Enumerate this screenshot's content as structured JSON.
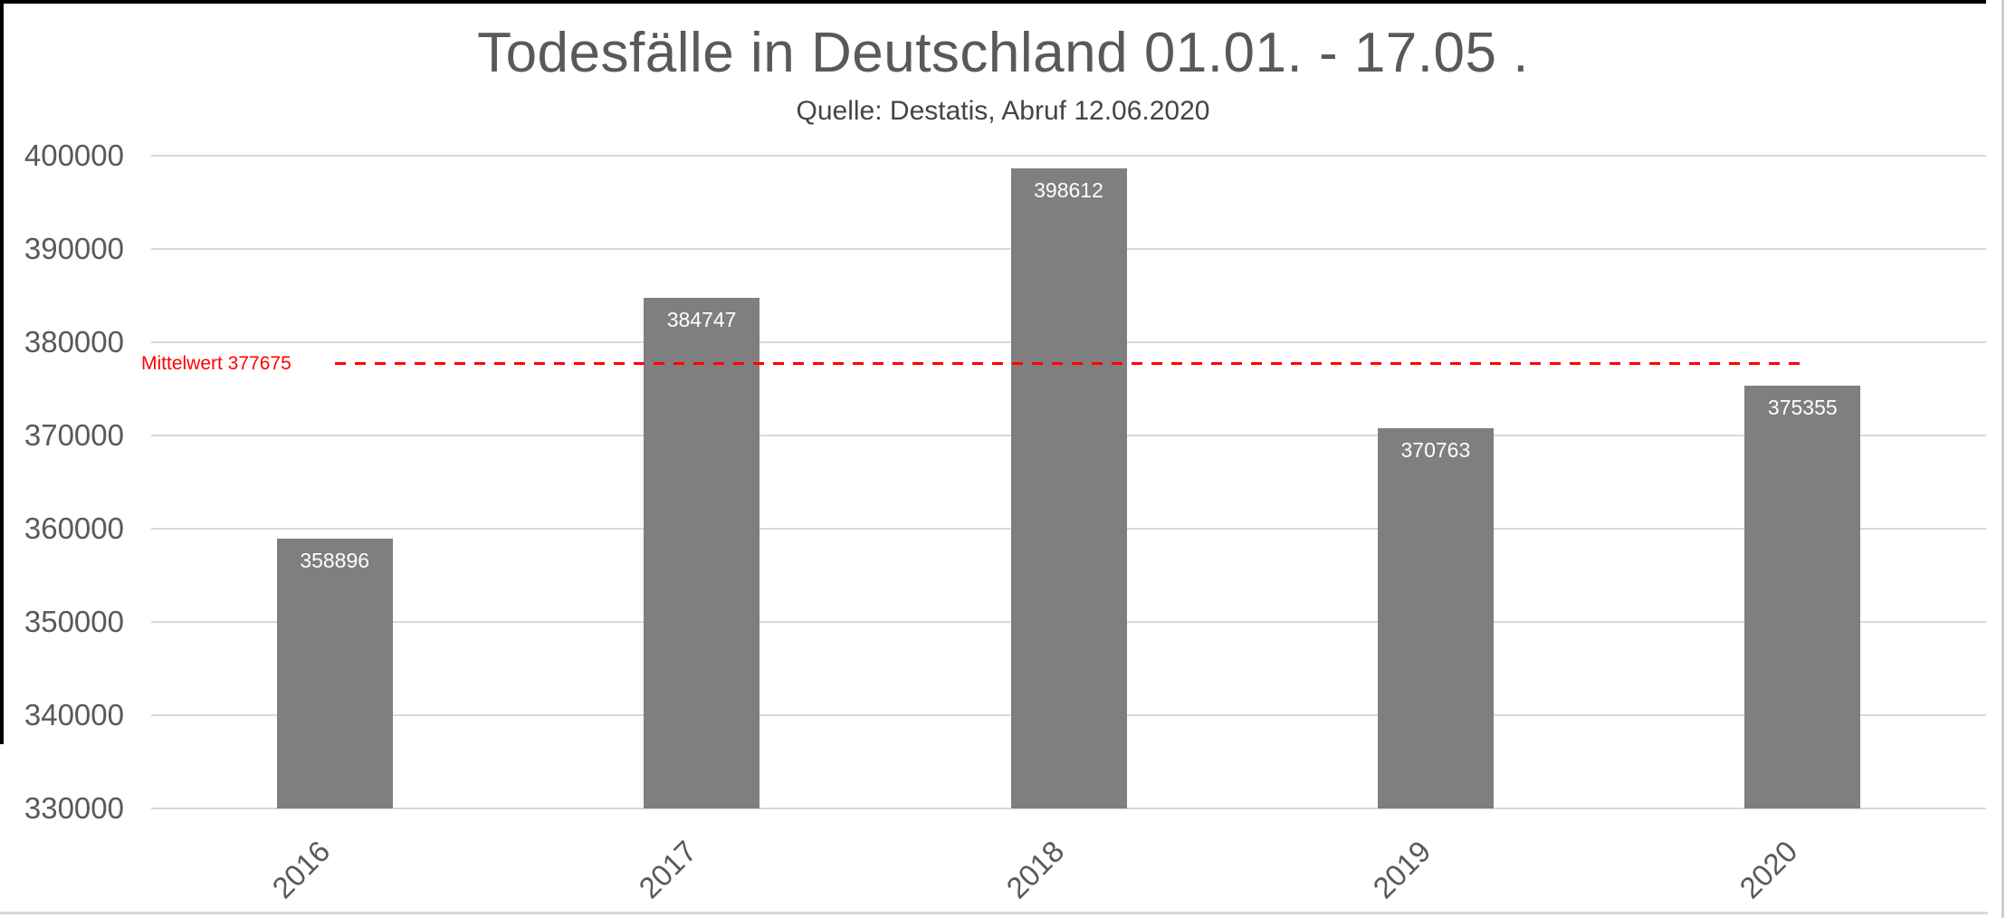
{
  "chart_data": {
    "type": "bar",
    "title": "Todesfälle in Deutschland 01.01. - 17.05 .",
    "subtitle": "Quelle: Destatis, Abruf 12.06.2020",
    "categories": [
      "2016",
      "2017",
      "2018",
      "2019",
      "2020"
    ],
    "values": [
      358896,
      384747,
      398612,
      370763,
      375355
    ],
    "bar_labels": [
      "358896",
      "384747",
      "398612",
      "370763",
      "375355"
    ],
    "mean_line": {
      "label": "Mittelwert 377675",
      "value": 377675,
      "style": "dashed",
      "color": "#ff0000"
    },
    "xlabel": "",
    "ylabel": "",
    "ylim": [
      330000,
      400000
    ],
    "ytick_step": 10000,
    "ytick_labels": [
      "400000",
      "390000",
      "380000",
      "370000",
      "360000",
      "350000",
      "340000",
      "330000"
    ],
    "grid": true,
    "legend": false,
    "colors": {
      "bar": "#7f7f7f",
      "bar_value_text": "#ffffff",
      "gridline": "#d9d9d9",
      "axis_text": "#595959",
      "title_text": "#595959",
      "mean": "#ff0000"
    }
  }
}
